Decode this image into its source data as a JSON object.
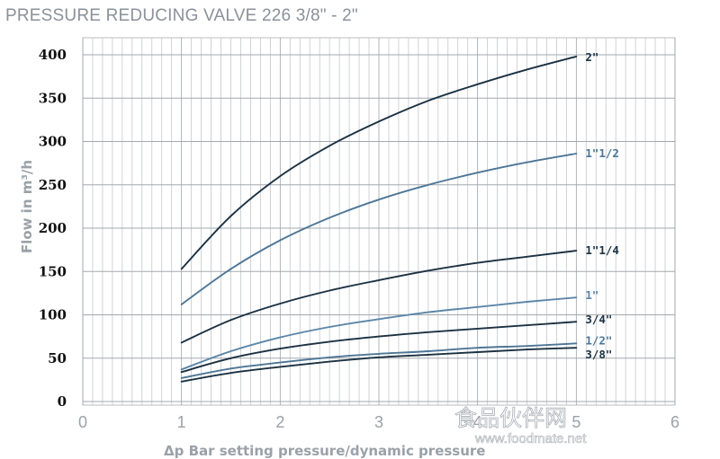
{
  "chart_data": {
    "type": "line",
    "title": "PRESSURE REDUCING VALVE 226 3/8\" - 2\"",
    "xlabel": "Δp Bar setting pressure/dynamic pressure",
    "ylabel": "Flow in m³/h",
    "xlim": [
      0,
      6
    ],
    "ylim": [
      0,
      400
    ],
    "x_ticks": [
      "0",
      "1",
      "2",
      "3",
      "4",
      "5",
      "6"
    ],
    "y_ticks": [
      "0",
      "50",
      "100",
      "150",
      "200",
      "250",
      "300",
      "350",
      "400"
    ],
    "grid": true,
    "x": [
      1,
      1.5,
      2,
      2.5,
      3,
      3.5,
      4,
      4.5,
      5
    ],
    "series": [
      {
        "name": "2\"",
        "color": "#1b3142",
        "values": [
          153,
          214,
          260,
          295,
          323,
          347,
          366,
          383,
          398
        ]
      },
      {
        "name": "1\"1/2",
        "color": "#4d7696",
        "values": [
          112,
          153,
          186,
          212,
          233,
          250,
          264,
          276,
          286
        ]
      },
      {
        "name": "1\"1/4",
        "color": "#1b3142",
        "values": [
          68,
          94,
          113,
          128,
          140,
          151,
          160,
          167,
          174
        ]
      },
      {
        "name": "1\"",
        "color": "#5b86a8",
        "values": [
          37,
          58,
          74,
          86,
          95,
          103,
          109,
          115,
          120
        ]
      },
      {
        "name": "3/4\"",
        "color": "#1b3142",
        "values": [
          34,
          50,
          61,
          69,
          75,
          80,
          84,
          88,
          92
        ]
      },
      {
        "name": "1/2\"",
        "color": "#4d7696",
        "values": [
          27,
          38,
          45,
          51,
          55,
          58,
          62,
          64,
          67
        ]
      },
      {
        "name": "3/8\"",
        "color": "#1b3142",
        "values": [
          23,
          33,
          40,
          46,
          51,
          54,
          57,
          60,
          62
        ]
      }
    ]
  },
  "watermark": {
    "cjk": "食品伙伴网",
    "url": "www.foodmate.net"
  }
}
